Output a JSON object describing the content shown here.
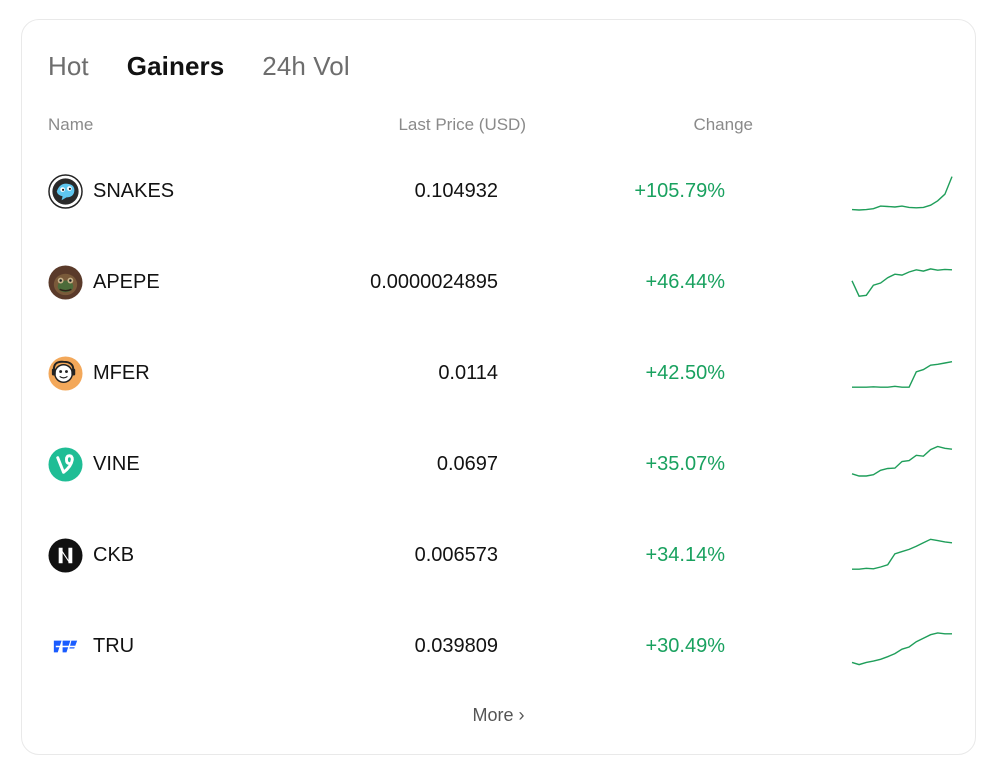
{
  "tabs": [
    {
      "label": "Hot"
    },
    {
      "label": "Gainers"
    },
    {
      "label": "24h Vol"
    }
  ],
  "active_tab": "Gainers",
  "header": {
    "name": "Name",
    "price": "Last Price (USD)",
    "change": "Change"
  },
  "rows": [
    {
      "name": "SNAKES",
      "price": "0.104932",
      "change": "+105.79%",
      "icon": "snakes-logo-icon",
      "spark": [
        0.1,
        0.09,
        0.1,
        0.12,
        0.18,
        0.17,
        0.16,
        0.18,
        0.15,
        0.14,
        0.15,
        0.2,
        0.3,
        0.45,
        0.85
      ]
    },
    {
      "name": "APEPE",
      "price": "0.0000024895",
      "change": "+46.44%",
      "icon": "apepe-logo-icon",
      "spark": [
        0.55,
        0.2,
        0.22,
        0.45,
        0.5,
        0.62,
        0.7,
        0.68,
        0.75,
        0.8,
        0.77,
        0.82,
        0.79,
        0.81,
        0.8
      ]
    },
    {
      "name": "MFER",
      "price": "0.0114",
      "change": "+42.50%",
      "icon": "mfer-logo-icon",
      "spark": [
        0.2,
        0.2,
        0.2,
        0.21,
        0.2,
        0.2,
        0.22,
        0.2,
        0.2,
        0.55,
        0.6,
        0.7,
        0.72,
        0.75,
        0.78
      ]
    },
    {
      "name": "VINE",
      "price": "0.0697",
      "change": "+35.07%",
      "icon": "vine-logo-icon",
      "spark": [
        0.3,
        0.25,
        0.25,
        0.28,
        0.38,
        0.42,
        0.43,
        0.58,
        0.6,
        0.72,
        0.7,
        0.85,
        0.92,
        0.88,
        0.86
      ]
    },
    {
      "name": "CKB",
      "price": "0.006573",
      "change": "+34.14%",
      "icon": "ckb-logo-icon",
      "spark": [
        0.2,
        0.2,
        0.22,
        0.21,
        0.25,
        0.3,
        0.55,
        0.6,
        0.65,
        0.72,
        0.8,
        0.88,
        0.85,
        0.82,
        0.8
      ]
    },
    {
      "name": "TRU",
      "price": "0.039809",
      "change": "+30.49%",
      "icon": "tru-logo-icon",
      "spark": [
        0.15,
        0.1,
        0.15,
        0.18,
        0.22,
        0.28,
        0.35,
        0.45,
        0.5,
        0.62,
        0.7,
        0.78,
        0.82,
        0.8,
        0.8
      ]
    }
  ],
  "more_label": "More",
  "colors": {
    "positive": "#19a15f",
    "spark": "#1f9e5a"
  }
}
